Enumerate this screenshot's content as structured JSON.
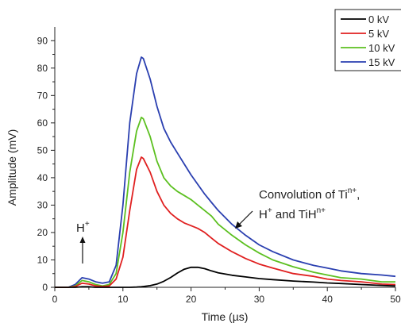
{
  "chart_data": {
    "type": "line",
    "xlabel": "Time (µs)",
    "ylabel": "Amplitude (mV)",
    "xlim": [
      0,
      50
    ],
    "ylim": [
      0,
      95
    ],
    "xticks": [
      0,
      10,
      20,
      30,
      40,
      50
    ],
    "yticks": [
      0,
      10,
      20,
      30,
      40,
      50,
      60,
      70,
      80,
      90
    ],
    "grid": false,
    "legend_position": "top-right",
    "x": [
      0,
      2,
      3,
      4,
      5,
      6,
      7,
      8,
      9,
      10,
      11,
      12,
      12.7,
      13,
      14,
      15,
      16,
      17,
      18,
      19,
      20,
      21,
      22,
      23,
      24,
      26,
      28,
      30,
      32,
      35,
      38,
      40,
      42,
      45,
      48,
      50
    ],
    "series": [
      {
        "name": "0 kV",
        "color": "#000000",
        "values": [
          0,
          0,
          0,
          0.2,
          0.2,
          0,
          0,
          0,
          0,
          0,
          0,
          0.1,
          0.2,
          0.3,
          0.6,
          1.2,
          2.2,
          3.6,
          5.2,
          6.6,
          7.3,
          7.3,
          6.8,
          6.0,
          5.3,
          4.4,
          3.8,
          3.2,
          2.8,
          2.3,
          1.9,
          1.6,
          1.4,
          1.0,
          0.7,
          0.5
        ]
      },
      {
        "name": "5 kV",
        "color": "#e02020",
        "values": [
          0,
          0,
          0.3,
          1.5,
          1.2,
          0.5,
          0.3,
          0.5,
          3,
          11,
          28,
          43,
          47.5,
          47,
          42,
          35,
          30,
          27,
          25,
          23.5,
          22.5,
          21.5,
          20,
          18,
          16,
          13,
          10.5,
          8.5,
          7,
          5,
          4,
          3,
          2.5,
          2,
          1.2,
          1
        ]
      },
      {
        "name": "10 kV",
        "color": "#5cc020",
        "values": [
          0,
          0,
          0.5,
          2.5,
          2,
          1,
          0.5,
          1,
          5,
          20,
          42,
          57,
          62,
          61.5,
          55,
          46,
          40,
          37,
          35,
          33.5,
          32,
          30,
          28,
          26,
          23,
          19,
          15.5,
          12.5,
          10,
          7.5,
          5.5,
          4.5,
          3.5,
          3,
          2,
          2
        ]
      },
      {
        "name": "15 kV",
        "color": "#2a3fb0",
        "values": [
          0,
          0,
          1,
          3.5,
          3,
          2,
          1.5,
          2,
          8,
          30,
          60,
          78,
          84,
          83.5,
          76,
          66,
          58,
          53,
          49,
          45,
          41,
          37.5,
          34,
          31,
          28,
          23,
          19,
          15.5,
          13,
          10,
          8,
          7,
          6,
          5,
          4.5,
          4
        ]
      }
    ],
    "legend": [
      "0 kV",
      "5 kV",
      "10 kV",
      "15 kV"
    ],
    "annotations": [
      {
        "text": "H",
        "superscript": "+",
        "arrow": "up"
      },
      {
        "line1": [
          "Convolution of Ti",
          "n+",
          ","
        ],
        "line2": [
          "H",
          "+",
          " and TiH",
          "n+"
        ],
        "arrow": "down-left"
      }
    ]
  }
}
